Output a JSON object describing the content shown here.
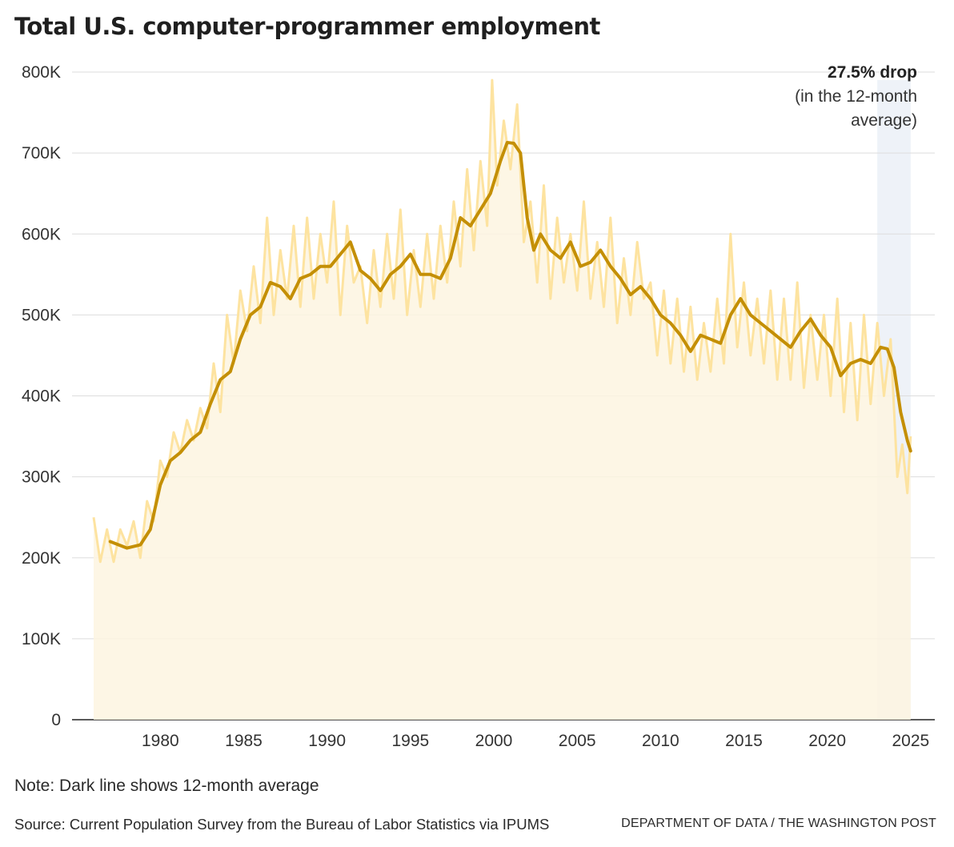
{
  "chart_data": {
    "type": "line",
    "title": "Total U.S. computer-programmer employment",
    "ylim": [
      0,
      800000
    ],
    "xlim": [
      1976,
      2025.2
    ],
    "y_ticks": [
      {
        "value": 0,
        "label": "0"
      },
      {
        "value": 100000,
        "label": "100K"
      },
      {
        "value": 200000,
        "label": "200K"
      },
      {
        "value": 300000,
        "label": "300K"
      },
      {
        "value": 400000,
        "label": "400K"
      },
      {
        "value": 500000,
        "label": "500K"
      },
      {
        "value": 600000,
        "label": "600K"
      },
      {
        "value": 700000,
        "label": "700K"
      },
      {
        "value": 800000,
        "label": "800K"
      }
    ],
    "x_ticks": [
      {
        "value": 1980,
        "label": "1980"
      },
      {
        "value": 1985,
        "label": "1985"
      },
      {
        "value": 1990,
        "label": "1990"
      },
      {
        "value": 1995,
        "label": "1995"
      },
      {
        "value": 2000,
        "label": "2000"
      },
      {
        "value": 2005,
        "label": "2005"
      },
      {
        "value": 2010,
        "label": "2010"
      },
      {
        "value": 2015,
        "label": "2015"
      },
      {
        "value": 2020,
        "label": "2020"
      },
      {
        "value": 2025,
        "label": "2025"
      }
    ],
    "grid": true,
    "highlight": {
      "x_start": 2023.0,
      "x_end": 2025.0,
      "color": "#eef2f8"
    },
    "annotation": {
      "bold": "27.5% drop",
      "lines": [
        "(in the 12-month",
        "average)"
      ]
    },
    "colors": {
      "monthly": "#fde3a0",
      "area": "#fdf5e1",
      "average": "#c48f05",
      "grid": "#dddddd"
    },
    "series": [
      {
        "type": "monthly",
        "x": [
          1976.0,
          1976.4,
          1976.8,
          1977.2,
          1977.6,
          1978.0,
          1978.4,
          1978.8,
          1979.2,
          1979.6,
          1980.0,
          1980.4,
          1980.8,
          1981.2,
          1981.6,
          1982.0,
          1982.4,
          1982.8,
          1983.2,
          1983.6,
          1984.0,
          1984.4,
          1984.8,
          1985.2,
          1985.6,
          1986.0,
          1986.4,
          1986.8,
          1987.2,
          1987.6,
          1988.0,
          1988.4,
          1988.8,
          1989.2,
          1989.6,
          1990.0,
          1990.4,
          1990.8,
          1991.2,
          1991.6,
          1992.0,
          1992.4,
          1992.8,
          1993.2,
          1993.6,
          1994.0,
          1994.4,
          1994.8,
          1995.2,
          1995.6,
          1996.0,
          1996.4,
          1996.8,
          1997.2,
          1997.6,
          1998.0,
          1998.4,
          1998.8,
          1999.2,
          1999.6,
          1999.9,
          2000.2,
          2000.6,
          2001.0,
          2001.4,
          2001.8,
          2002.2,
          2002.6,
          2003.0,
          2003.4,
          2003.8,
          2004.2,
          2004.6,
          2005.0,
          2005.4,
          2005.8,
          2006.2,
          2006.6,
          2007.0,
          2007.4,
          2007.8,
          2008.2,
          2008.6,
          2009.0,
          2009.4,
          2009.8,
          2010.2,
          2010.6,
          2011.0,
          2011.4,
          2011.8,
          2012.2,
          2012.6,
          2013.0,
          2013.4,
          2013.8,
          2014.2,
          2014.6,
          2015.0,
          2015.4,
          2015.8,
          2016.2,
          2016.6,
          2017.0,
          2017.4,
          2017.8,
          2018.2,
          2018.6,
          2019.0,
          2019.4,
          2019.8,
          2020.2,
          2020.6,
          2021.0,
          2021.4,
          2021.8,
          2022.2,
          2022.6,
          2023.0,
          2023.4,
          2023.8,
          2024.2,
          2024.5,
          2024.8,
          2025.0
        ],
        "y": [
          250000,
          195000,
          235000,
          195000,
          235000,
          215000,
          245000,
          200000,
          270000,
          245000,
          320000,
          300000,
          355000,
          330000,
          370000,
          345000,
          385000,
          360000,
          440000,
          380000,
          500000,
          440000,
          530000,
          480000,
          560000,
          490000,
          620000,
          500000,
          580000,
          520000,
          610000,
          510000,
          620000,
          520000,
          600000,
          540000,
          640000,
          500000,
          610000,
          540000,
          560000,
          490000,
          580000,
          510000,
          600000,
          520000,
          630000,
          500000,
          580000,
          510000,
          600000,
          520000,
          610000,
          540000,
          640000,
          560000,
          680000,
          580000,
          690000,
          610000,
          790000,
          660000,
          740000,
          680000,
          760000,
          590000,
          640000,
          540000,
          660000,
          520000,
          620000,
          540000,
          600000,
          530000,
          640000,
          520000,
          590000,
          510000,
          620000,
          490000,
          570000,
          500000,
          590000,
          520000,
          540000,
          450000,
          530000,
          440000,
          520000,
          430000,
          510000,
          420000,
          490000,
          430000,
          520000,
          440000,
          600000,
          460000,
          540000,
          450000,
          520000,
          440000,
          530000,
          420000,
          520000,
          420000,
          540000,
          410000,
          500000,
          420000,
          500000,
          400000,
          520000,
          380000,
          490000,
          370000,
          500000,
          390000,
          490000,
          400000,
          470000,
          300000,
          340000,
          280000,
          350000
        ]
      },
      {
        "type": "average",
        "x": [
          1977.0,
          1978.0,
          1978.8,
          1979.4,
          1980.0,
          1980.6,
          1981.2,
          1981.8,
          1982.4,
          1983.0,
          1983.6,
          1984.2,
          1984.8,
          1985.4,
          1986.0,
          1986.6,
          1987.2,
          1987.8,
          1988.4,
          1989.0,
          1989.6,
          1990.2,
          1990.8,
          1991.4,
          1992.0,
          1992.6,
          1993.2,
          1993.8,
          1994.4,
          1995.0,
          1995.6,
          1996.2,
          1996.8,
          1997.4,
          1998.0,
          1998.6,
          1999.2,
          1999.8,
          2000.4,
          2000.8,
          2001.2,
          2001.6,
          2002.0,
          2002.4,
          2002.8,
          2003.4,
          2004.0,
          2004.6,
          2005.2,
          2005.8,
          2006.4,
          2007.0,
          2007.6,
          2008.2,
          2008.8,
          2009.4,
          2010.0,
          2010.6,
          2011.2,
          2011.8,
          2012.4,
          2013.0,
          2013.6,
          2014.2,
          2014.8,
          2015.4,
          2016.0,
          2016.6,
          2017.2,
          2017.8,
          2018.4,
          2019.0,
          2019.6,
          2020.2,
          2020.8,
          2021.4,
          2022.0,
          2022.6,
          2023.2,
          2023.6,
          2024.0,
          2024.4,
          2024.8,
          2025.0
        ],
        "y": [
          220000,
          212000,
          216000,
          235000,
          290000,
          320000,
          330000,
          345000,
          355000,
          390000,
          420000,
          430000,
          470000,
          500000,
          510000,
          540000,
          535000,
          520000,
          545000,
          550000,
          560000,
          560000,
          575000,
          590000,
          555000,
          545000,
          530000,
          550000,
          560000,
          575000,
          550000,
          550000,
          545000,
          570000,
          620000,
          610000,
          630000,
          650000,
          690000,
          713000,
          712000,
          700000,
          620000,
          580000,
          600000,
          580000,
          570000,
          590000,
          560000,
          565000,
          580000,
          560000,
          545000,
          525000,
          535000,
          520000,
          500000,
          490000,
          475000,
          455000,
          475000,
          470000,
          465000,
          500000,
          520000,
          500000,
          490000,
          480000,
          470000,
          460000,
          480000,
          495000,
          475000,
          460000,
          425000,
          440000,
          445000,
          440000,
          460000,
          458000,
          435000,
          380000,
          345000,
          332000
        ]
      }
    ]
  },
  "footer": {
    "note": "Note: Dark line shows 12-month average",
    "source": "Source: Current Population Survey from the Bureau of Labor Statistics via IPUMS",
    "credit": "DEPARTMENT OF DATA / THE WASHINGTON POST"
  }
}
